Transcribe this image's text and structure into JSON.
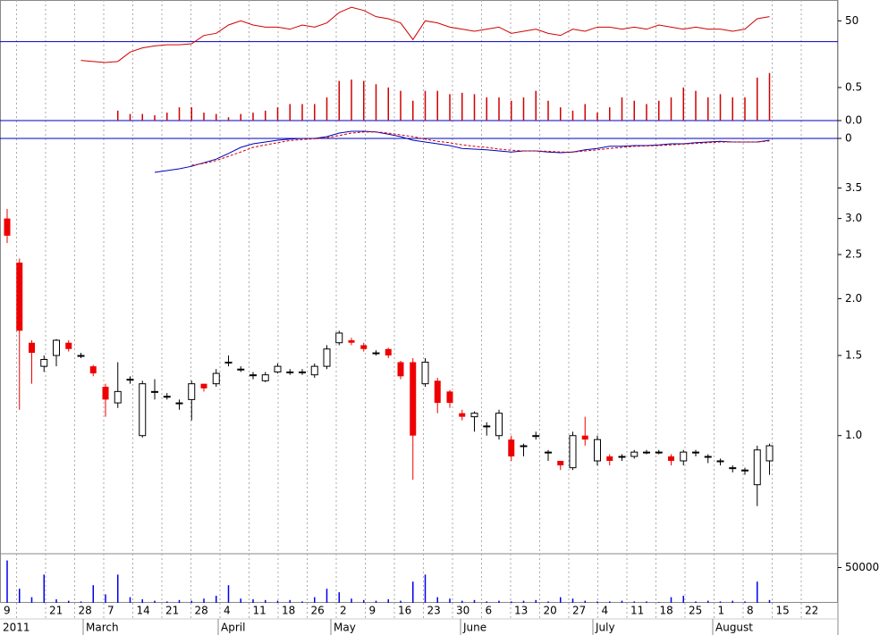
{
  "x_axis": {
    "weeks": [
      "9",
      null,
      "21",
      "28",
      "7",
      "14",
      "21",
      "28",
      "4",
      "11",
      "18",
      "26",
      "2",
      "9",
      "16",
      "23",
      "30",
      "6",
      "13",
      "20",
      "27",
      "4",
      "11",
      "18",
      "25",
      "1",
      "8",
      "15",
      "22"
    ],
    "months": [
      "2011",
      "March",
      "April",
      "May",
      "June",
      "July",
      "August"
    ]
  },
  "chart_data": [
    {
      "type": "line",
      "color": "#d00000",
      "ylim": [
        30,
        60
      ],
      "yticks": [
        50
      ],
      "reference_line": 40,
      "reference_color": "#0000c0",
      "values": [
        null,
        null,
        null,
        null,
        null,
        null,
        31,
        30.5,
        30,
        30.5,
        35,
        37,
        38,
        38.5,
        38.5,
        39,
        43,
        44,
        48,
        50,
        48,
        47,
        47,
        46,
        48,
        47,
        49,
        54,
        56.5,
        55,
        52,
        51,
        49,
        41,
        50,
        49,
        47,
        46,
        45,
        46,
        47,
        44,
        45,
        46,
        44,
        43,
        46,
        45,
        47,
        47,
        46,
        47,
        46,
        48,
        47,
        46,
        47,
        46,
        46,
        45,
        46,
        51,
        52
      ]
    },
    {
      "type": "bar",
      "color": "#d00000",
      "ylim": [
        0,
        1.0
      ],
      "yticks": [
        0.5,
        {
          "value": 0,
          "label": "0.0"
        }
      ],
      "baseline_color": "#0000c0",
      "values": [
        null,
        null,
        null,
        null,
        null,
        null,
        null,
        null,
        null,
        0.15,
        0.1,
        0.1,
        0.08,
        0.12,
        0.2,
        0.2,
        0.12,
        0.1,
        0.05,
        0.1,
        0.12,
        0.15,
        0.2,
        0.25,
        0.25,
        0.25,
        0.35,
        0.6,
        0.62,
        0.6,
        0.55,
        0.5,
        0.45,
        0.3,
        0.45,
        0.45,
        0.4,
        0.42,
        0.4,
        0.35,
        0.35,
        0.3,
        0.35,
        0.45,
        0.3,
        0.2,
        0.15,
        0.25,
        0.12,
        0.2,
        0.35,
        0.3,
        0.25,
        0.3,
        0.35,
        0.5,
        0.45,
        0.35,
        0.4,
        0.35,
        0.35,
        0.65,
        0.72
      ]
    },
    {
      "type": "line",
      "ylim": [
        -1.125,
        0.375
      ],
      "yticks": [
        0
      ],
      "zero_color": "#0000c0",
      "series": [
        {
          "color": "#0000c0",
          "dashed": false,
          "values": [
            null,
            null,
            null,
            null,
            null,
            null,
            null,
            null,
            null,
            null,
            null,
            null,
            -0.95,
            -0.9,
            -0.85,
            -0.78,
            -0.68,
            -0.58,
            -0.42,
            -0.25,
            -0.15,
            -0.1,
            -0.05,
            -0.02,
            0,
            0,
            0.05,
            0.15,
            0.2,
            0.2,
            0.18,
            0.12,
            0.05,
            -0.05,
            -0.1,
            -0.15,
            -0.2,
            -0.28,
            -0.3,
            -0.32,
            -0.35,
            -0.38,
            -0.35,
            -0.35,
            -0.38,
            -0.4,
            -0.38,
            -0.32,
            -0.28,
            -0.22,
            -0.22,
            -0.2,
            -0.2,
            -0.18,
            -0.15,
            -0.15,
            -0.12,
            -0.1,
            -0.08,
            -0.1,
            -0.1,
            -0.1,
            -0.05
          ]
        },
        {
          "color": "#d00000",
          "dashed": true,
          "values": [
            null,
            null,
            null,
            null,
            null,
            null,
            null,
            null,
            null,
            null,
            null,
            null,
            null,
            null,
            null,
            -0.75,
            -0.7,
            -0.62,
            -0.5,
            -0.38,
            -0.25,
            -0.18,
            -0.12,
            -0.06,
            -0.03,
            -0.01,
            0.02,
            0.08,
            0.15,
            0.18,
            0.18,
            0.15,
            0.1,
            0.05,
            -0.02,
            -0.08,
            -0.12,
            -0.18,
            -0.22,
            -0.25,
            -0.3,
            -0.33,
            -0.35,
            -0.35,
            -0.36,
            -0.38,
            -0.38,
            -0.35,
            -0.32,
            -0.28,
            -0.25,
            -0.22,
            -0.21,
            -0.2,
            -0.18,
            -0.16,
            -0.14,
            -0.12,
            -0.1,
            -0.1,
            -0.1,
            -0.1,
            -0.07
          ]
        }
      ]
    },
    {
      "type": "candlestick",
      "log_scale": true,
      "up_color": "#ffffff",
      "down_color": "#ee0000",
      "ylim": [
        0.55,
        4.3
      ],
      "yticks": [
        3.5,
        {
          "value": 3,
          "label": "3.0"
        },
        2.5,
        {
          "value": 2,
          "label": "2.0"
        },
        1.5,
        {
          "value": 1,
          "label": "1.0"
        }
      ],
      "open": [
        3.0,
        2.4,
        1.6,
        1.42,
        1.5,
        1.6,
        1.5,
        1.42,
        1.28,
        1.18,
        1.33,
        1.0,
        1.25,
        1.22,
        1.18,
        1.2,
        1.3,
        1.3,
        1.45,
        1.4,
        1.36,
        1.32,
        1.38,
        1.38,
        1.38,
        1.36,
        1.42,
        1.6,
        1.62,
        1.58,
        1.52,
        1.55,
        1.45,
        1.45,
        1.3,
        1.32,
        1.25,
        1.12,
        1.1,
        1.05,
        1.0,
        0.98,
        0.95,
        1.0,
        0.92,
        0.88,
        0.85,
        1.0,
        0.88,
        0.9,
        0.9,
        0.9,
        0.92,
        0.92,
        0.9,
        0.88,
        0.92,
        0.9,
        0.88,
        0.85,
        0.84,
        0.78,
        0.88
      ],
      "high": [
        3.15,
        2.45,
        1.62,
        1.5,
        1.63,
        1.62,
        1.52,
        1.43,
        1.3,
        1.45,
        1.35,
        1.32,
        1.33,
        1.24,
        1.2,
        1.32,
        1.3,
        1.4,
        1.5,
        1.42,
        1.38,
        1.38,
        1.44,
        1.4,
        1.4,
        1.44,
        1.58,
        1.7,
        1.64,
        1.6,
        1.54,
        1.56,
        1.46,
        1.48,
        1.48,
        1.34,
        1.26,
        1.14,
        1.13,
        1.07,
        1.14,
        1.0,
        0.96,
        1.02,
        0.93,
        0.88,
        1.02,
        1.1,
        1.0,
        0.91,
        0.91,
        0.93,
        0.93,
        0.93,
        0.91,
        0.93,
        0.93,
        0.91,
        0.89,
        0.86,
        0.85,
        0.95,
        0.96
      ],
      "low": [
        2.65,
        1.14,
        1.3,
        1.38,
        1.42,
        1.53,
        1.48,
        1.35,
        1.1,
        1.15,
        1.3,
        0.99,
        1.2,
        1.2,
        1.14,
        1.08,
        1.25,
        1.28,
        1.42,
        1.38,
        1.33,
        1.31,
        1.37,
        1.36,
        1.36,
        1.34,
        1.4,
        1.58,
        1.58,
        1.53,
        1.5,
        1.48,
        1.33,
        0.8,
        1.28,
        1.12,
        1.15,
        1.08,
        1.02,
        1.0,
        0.98,
        0.88,
        0.9,
        0.98,
        0.88,
        0.84,
        0.84,
        0.95,
        0.86,
        0.86,
        0.88,
        0.89,
        0.91,
        0.91,
        0.86,
        0.86,
        0.9,
        0.87,
        0.86,
        0.83,
        0.82,
        0.7,
        0.82
      ],
      "close": [
        2.75,
        1.7,
        1.52,
        1.47,
        1.62,
        1.55,
        1.5,
        1.37,
        1.2,
        1.25,
        1.33,
        1.3,
        1.25,
        1.22,
        1.18,
        1.3,
        1.27,
        1.37,
        1.45,
        1.4,
        1.36,
        1.36,
        1.42,
        1.38,
        1.38,
        1.42,
        1.55,
        1.68,
        1.6,
        1.55,
        1.52,
        1.5,
        1.35,
        1.0,
        1.45,
        1.18,
        1.18,
        1.1,
        1.12,
        1.05,
        1.12,
        0.9,
        0.95,
        1.0,
        0.92,
        0.86,
        1.0,
        0.98,
        0.98,
        0.88,
        0.9,
        0.92,
        0.92,
        0.92,
        0.88,
        0.92,
        0.92,
        0.9,
        0.88,
        0.85,
        0.84,
        0.93,
        0.95
      ]
    },
    {
      "type": "bar",
      "color": "#0000ee",
      "ylim": [
        0,
        67000
      ],
      "yticks": [
        50000
      ],
      "values": [
        60000,
        20000,
        8000,
        40000,
        5000,
        3000,
        2000,
        25000,
        12000,
        40000,
        8000,
        5000,
        3000,
        2000,
        4000,
        3000,
        6000,
        10000,
        25000,
        6000,
        5000,
        4000,
        3000,
        4000,
        2000,
        8000,
        20000,
        15000,
        6000,
        4000,
        3000,
        5000,
        3000,
        30000,
        40000,
        8000,
        6000,
        3000,
        4000,
        2000,
        3000,
        2000,
        3000,
        4000,
        2000,
        8000,
        6000,
        3000,
        2000,
        2000,
        3000,
        2000,
        2000,
        1000,
        8000,
        10000,
        2000,
        3000,
        2000,
        3000,
        2000,
        30000,
        4000
      ]
    }
  ]
}
